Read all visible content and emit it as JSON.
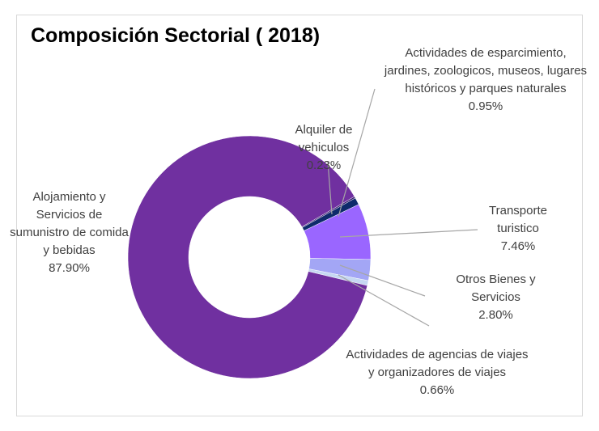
{
  "chart_data": {
    "type": "donut",
    "title": "Composición Sectorial ( 2018)",
    "categories": [
      "Alquiler de vehiculos",
      "Actividades de esparcimiento, jardines, zoologicos, museos, lugares históricos y parques naturales",
      "Transporte turistico",
      "Otros Bienes y Servicios",
      "Actividades de agencias de viajes y organizadores de viajes",
      "Alojamiento y Servicios de sumunistro de comida y bebidas"
    ],
    "values": [
      0.23,
      0.95,
      7.46,
      2.8,
      0.66,
      87.9
    ],
    "value_labels": [
      "0.23%",
      "0.95%",
      "7.46%",
      "2.80%",
      "0.66%",
      "87.90%"
    ],
    "colors": [
      "#3b1f73",
      "#0e2a6b",
      "#9a66ff",
      "#a3a6f5",
      "#c6d8f2",
      "#7030a0"
    ],
    "start_angle": 60
  }
}
